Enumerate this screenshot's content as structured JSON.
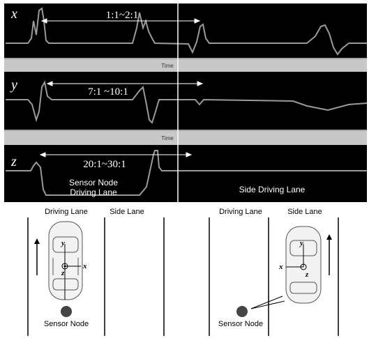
{
  "panels": [
    {
      "axis": "x",
      "ratio": "1:1~2:1",
      "time": "Time"
    },
    {
      "axis": "y",
      "ratio": "7:1 ~10:1",
      "time": "Time"
    },
    {
      "axis": "z",
      "ratio": "20:1~30:1",
      "left_label": [
        "Sensor Node",
        "Driving Lane"
      ],
      "right_label": "Side Driving Lane"
    }
  ],
  "diagram": {
    "left": {
      "lanes": [
        "Driving Lane",
        "Side Lane"
      ],
      "sensor": "Sensor Node",
      "axes": [
        "y",
        "z",
        "x"
      ]
    },
    "right": {
      "lanes": [
        "Driving Lane",
        "Side Lane"
      ],
      "sensor": "Sensor Node",
      "axes": [
        "y",
        "z",
        "x"
      ]
    }
  }
}
